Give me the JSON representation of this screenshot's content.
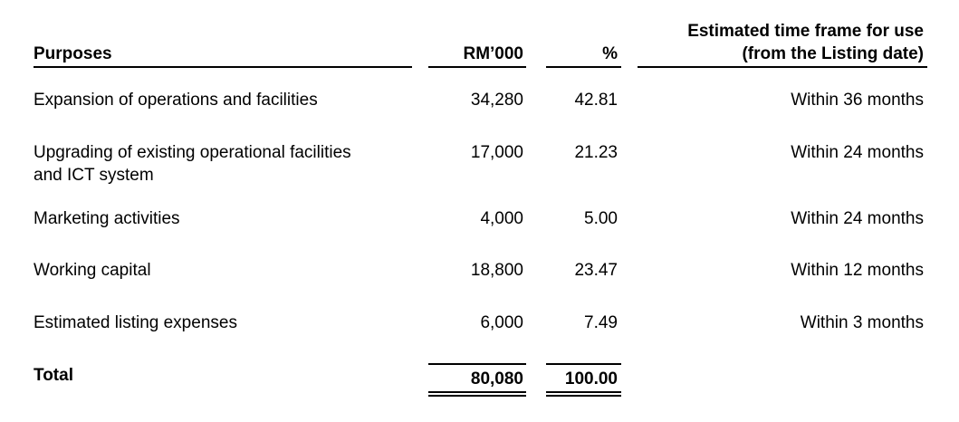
{
  "header": {
    "purposes": "Purposes",
    "rm": "RM’000",
    "pct": "%",
    "timeframe_line1": "Estimated time frame for use",
    "timeframe_line2": "(from the Listing date)"
  },
  "rows": [
    {
      "purpose": "Expansion of operations and facilities",
      "rm": "34,280",
      "pct": "42.81",
      "timeframe": "Within 36 months"
    },
    {
      "purpose_line1": "Upgrading of existing operational facilities",
      "purpose_line2": "and ICT system",
      "rm": "17,000",
      "pct": "21.23",
      "timeframe": "Within 24 months"
    },
    {
      "purpose": "Marketing activities",
      "rm": "4,000",
      "pct": "5.00",
      "timeframe": "Within 24 months"
    },
    {
      "purpose": "Working capital",
      "rm": "18,800",
      "pct": "23.47",
      "timeframe": "Within 12 months"
    },
    {
      "purpose": "Estimated listing expenses",
      "rm": "6,000",
      "pct": "7.49",
      "timeframe": "Within 3 months"
    }
  ],
  "total": {
    "label": "Total",
    "rm": "80,080",
    "pct": "100.00"
  }
}
